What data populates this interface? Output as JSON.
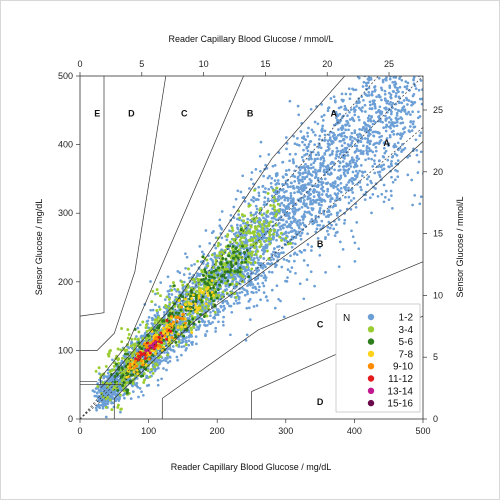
{
  "chart_data": {
    "type": "scatter",
    "title": "",
    "xlabel": "Reader Capillary Blood Glucose / mg/dL",
    "ylabel": "Sensor Glucose / mg/dL",
    "x2label": "Reader Capillary Blood Glucose / mmol/L",
    "y2label": "Sensor Glucose / mmol/L",
    "xlim": [
      0,
      500
    ],
    "ylim": [
      0,
      500
    ],
    "x2lim": [
      0,
      27.75
    ],
    "y2lim": [
      0,
      27.75
    ],
    "x_ticks": [
      0,
      100,
      200,
      300,
      400,
      500
    ],
    "y_ticks": [
      0,
      100,
      200,
      300,
      400,
      500
    ],
    "x2_ticks": [
      0,
      5,
      10,
      15,
      20,
      25
    ],
    "y2_ticks": [
      0,
      5,
      10,
      15,
      20,
      25
    ],
    "grid": false,
    "legend": {
      "title": "N",
      "placement": "bottom-right",
      "entries": [
        {
          "label": "1-2",
          "color": "#6b9fd6"
        },
        {
          "label": "3-4",
          "color": "#9acd32"
        },
        {
          "label": "5-6",
          "color": "#2e7d1e"
        },
        {
          "label": "7-8",
          "color": "#ffd21a"
        },
        {
          "label": "9-10",
          "color": "#ff8c00"
        },
        {
          "label": "11-12",
          "color": "#e41a1c"
        },
        {
          "label": "13-14",
          "color": "#c2188f"
        },
        {
          "label": "15-16",
          "color": "#6a0a4a"
        }
      ]
    },
    "zone_labels": [
      {
        "label": "E",
        "x": 25,
        "y": 445
      },
      {
        "label": "D",
        "x": 75,
        "y": 445
      },
      {
        "label": "C",
        "x": 152,
        "y": 445
      },
      {
        "label": "B",
        "x": 248,
        "y": 445
      },
      {
        "label": "A",
        "x": 370,
        "y": 445
      },
      {
        "label": "A",
        "x": 447,
        "y": 402
      },
      {
        "label": "B",
        "x": 350,
        "y": 255
      },
      {
        "label": "C",
        "x": 350,
        "y": 138
      },
      {
        "label": "D",
        "x": 350,
        "y": 25
      }
    ],
    "zone_lines": [
      {
        "points": [
          [
            0,
            150
          ],
          [
            35,
            155
          ],
          [
            35,
            500
          ]
        ]
      },
      {
        "points": [
          [
            0,
            100
          ],
          [
            25,
            100
          ],
          [
            50,
            125
          ],
          [
            80,
            215
          ],
          [
            125,
            500
          ]
        ]
      },
      {
        "points": [
          [
            30,
            50
          ],
          [
            30,
            60
          ],
          [
            70,
            110
          ],
          [
            260,
            550
          ]
        ]
      },
      {
        "points": [
          [
            30,
            45
          ],
          [
            140,
            170
          ],
          [
            280,
            380
          ],
          [
            430,
            550
          ]
        ]
      },
      {
        "points": [
          [
            50,
            0
          ],
          [
            50,
            30
          ],
          [
            170,
            145
          ],
          [
            385,
            300
          ],
          [
            550,
            450
          ]
        ]
      },
      {
        "points": [
          [
            120,
            0
          ],
          [
            120,
            30
          ],
          [
            260,
            130
          ],
          [
            550,
            250
          ]
        ]
      },
      {
        "points": [
          [
            250,
            0
          ],
          [
            250,
            40
          ],
          [
            500,
            150
          ]
        ]
      },
      {
        "points": [
          [
            0,
            55
          ],
          [
            25,
            55
          ]
        ]
      },
      {
        "points": [
          [
            0,
            50
          ],
          [
            58,
            50
          ]
        ]
      }
    ],
    "reference_lines": [
      {
        "label": "identity",
        "points": [
          [
            0,
            0
          ],
          [
            500,
            500
          ]
        ]
      },
      {
        "label": "upper-15pct",
        "points": [
          [
            0,
            0
          ],
          [
            435,
            500
          ]
        ]
      },
      {
        "label": "lower-15pct",
        "points": [
          [
            0,
            0
          ],
          [
            500,
            425
          ]
        ]
      }
    ],
    "density_clusters": [
      {
        "n": "3-4",
        "from": [
          40,
          50
        ],
        "to": [
          290,
          300
        ],
        "spread": 22,
        "count": 650
      },
      {
        "n": "5-6",
        "from": [
          55,
          55
        ],
        "to": [
          240,
          245
        ],
        "spread": 14,
        "count": 260
      },
      {
        "n": "7-8",
        "from": [
          70,
          70
        ],
        "to": [
          190,
          190
        ],
        "spread": 9,
        "count": 110
      },
      {
        "n": "9-10",
        "from": [
          75,
          75
        ],
        "to": [
          150,
          150
        ],
        "spread": 7,
        "count": 55
      },
      {
        "n": "11-12",
        "from": [
          85,
          85
        ],
        "to": [
          135,
          135
        ],
        "spread": 5,
        "count": 28
      },
      {
        "n": "13-14",
        "from": [
          95,
          95
        ],
        "to": [
          125,
          125
        ],
        "spread": 3,
        "count": 8
      }
    ],
    "sparse_points": {
      "n": "1-2",
      "from": [
        30,
        30
      ],
      "to": [
        490,
        490
      ],
      "count": 4200
    }
  }
}
